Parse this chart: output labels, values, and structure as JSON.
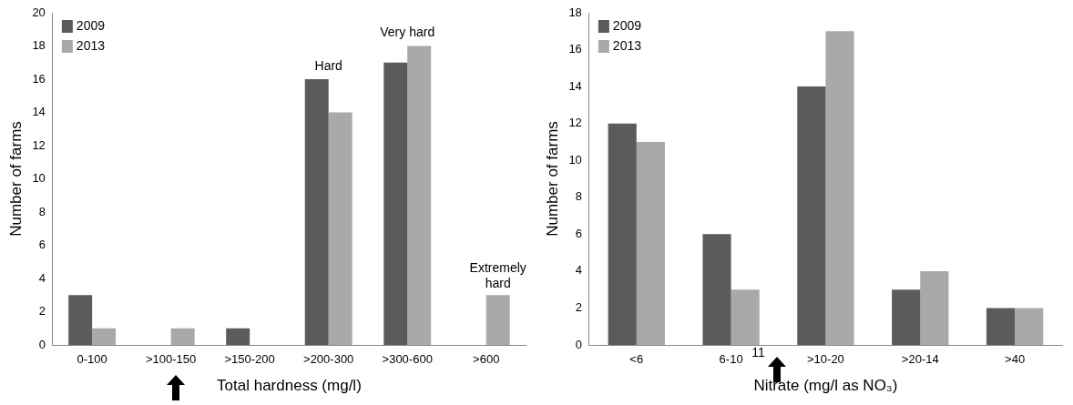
{
  "chart_data": [
    {
      "type": "bar",
      "xlabel": "Total hardness (mg/l)",
      "ylabel": "Number of farms",
      "categories": [
        "0-100",
        ">100-150",
        ">150-200",
        ">200-300",
        ">300-600",
        ">600"
      ],
      "series": [
        {
          "name": "2009",
          "color": "#595b5d",
          "values": [
            3,
            0,
            1,
            16,
            17,
            0
          ]
        },
        {
          "name": "2013",
          "color": "#a7a9ab",
          "values": [
            1,
            1,
            0,
            14,
            18,
            3
          ]
        }
      ],
      "ylim": [
        0,
        20
      ],
      "yticks": [
        0,
        2,
        4,
        6,
        8,
        10,
        12,
        14,
        16,
        18,
        20
      ],
      "grid": false,
      "legend": "top left",
      "annotations": [
        {
          "text": "Hard",
          "x": ">200-300",
          "y": 16
        },
        {
          "text": "Very hard",
          "x": ">300-600",
          "y": 18
        },
        {
          "text": "Extremely hard",
          "x": ">600",
          "y": 3
        }
      ]
    },
    {
      "type": "bar",
      "xlabel": "Nitrate (mg/l as NO₃)",
      "ylabel": "Number of farms",
      "categories": [
        "<6",
        "6-10",
        ">10-20",
        ">20-14",
        ">40"
      ],
      "series": [
        {
          "name": "2009",
          "color": "#595b5d",
          "values": [
            12,
            6,
            14,
            3,
            2
          ]
        },
        {
          "name": "2013",
          "color": "#a7a9ab",
          "values": [
            11,
            3,
            17,
            4,
            2
          ]
        }
      ],
      "ylim": [
        0,
        18
      ],
      "yticks": [
        0,
        2,
        4,
        6,
        8,
        10,
        12,
        14,
        16,
        18
      ],
      "grid": false,
      "legend": "top left",
      "annotations": [
        "11"
      ]
    }
  ]
}
